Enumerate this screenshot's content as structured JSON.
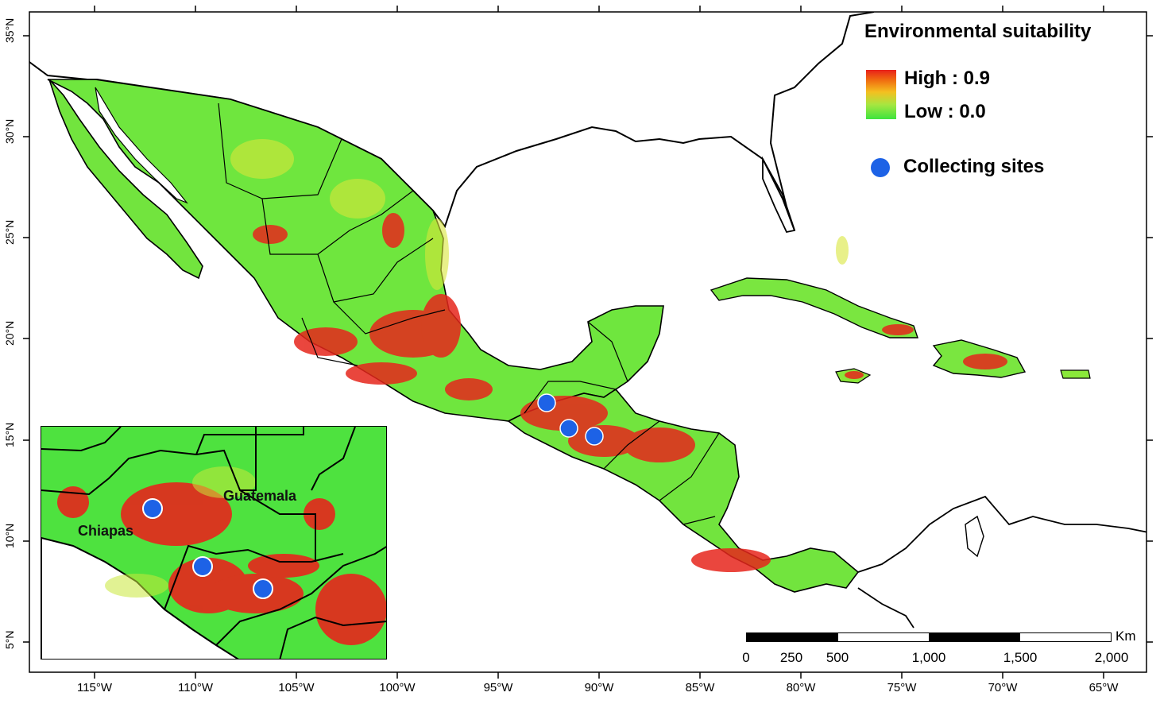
{
  "legend": {
    "title": "Environmental suitability",
    "high_label": "High : 0.9",
    "low_label": "Low : 0.0",
    "sites_label": "Collecting sites",
    "site_color": "#1d62e6",
    "high_color": "#e8201a",
    "low_color": "#3ee43e"
  },
  "axes": {
    "y_ticks": [
      "35°N",
      "30°N",
      "25°N",
      "20°N",
      "15°N",
      "10°N",
      "5°N"
    ],
    "x_ticks": [
      "115°W",
      "110°W",
      "105°W",
      "100°W",
      "95°W",
      "90°W",
      "85°W",
      "80°W",
      "75°W",
      "70°W",
      "65°W"
    ]
  },
  "scale_bar": {
    "unit": "Km",
    "labels": [
      "0",
      "250",
      "500",
      "1,000",
      "1,500",
      "2,000"
    ]
  },
  "inset": {
    "labels": [
      "Guatemala",
      "Chiapas"
    ]
  },
  "colors": {
    "land_low": "#49e23f",
    "land_mid": "#b9ea3a",
    "land_high": "#e6261c",
    "border": "#000000",
    "ocean": "#ffffff"
  }
}
